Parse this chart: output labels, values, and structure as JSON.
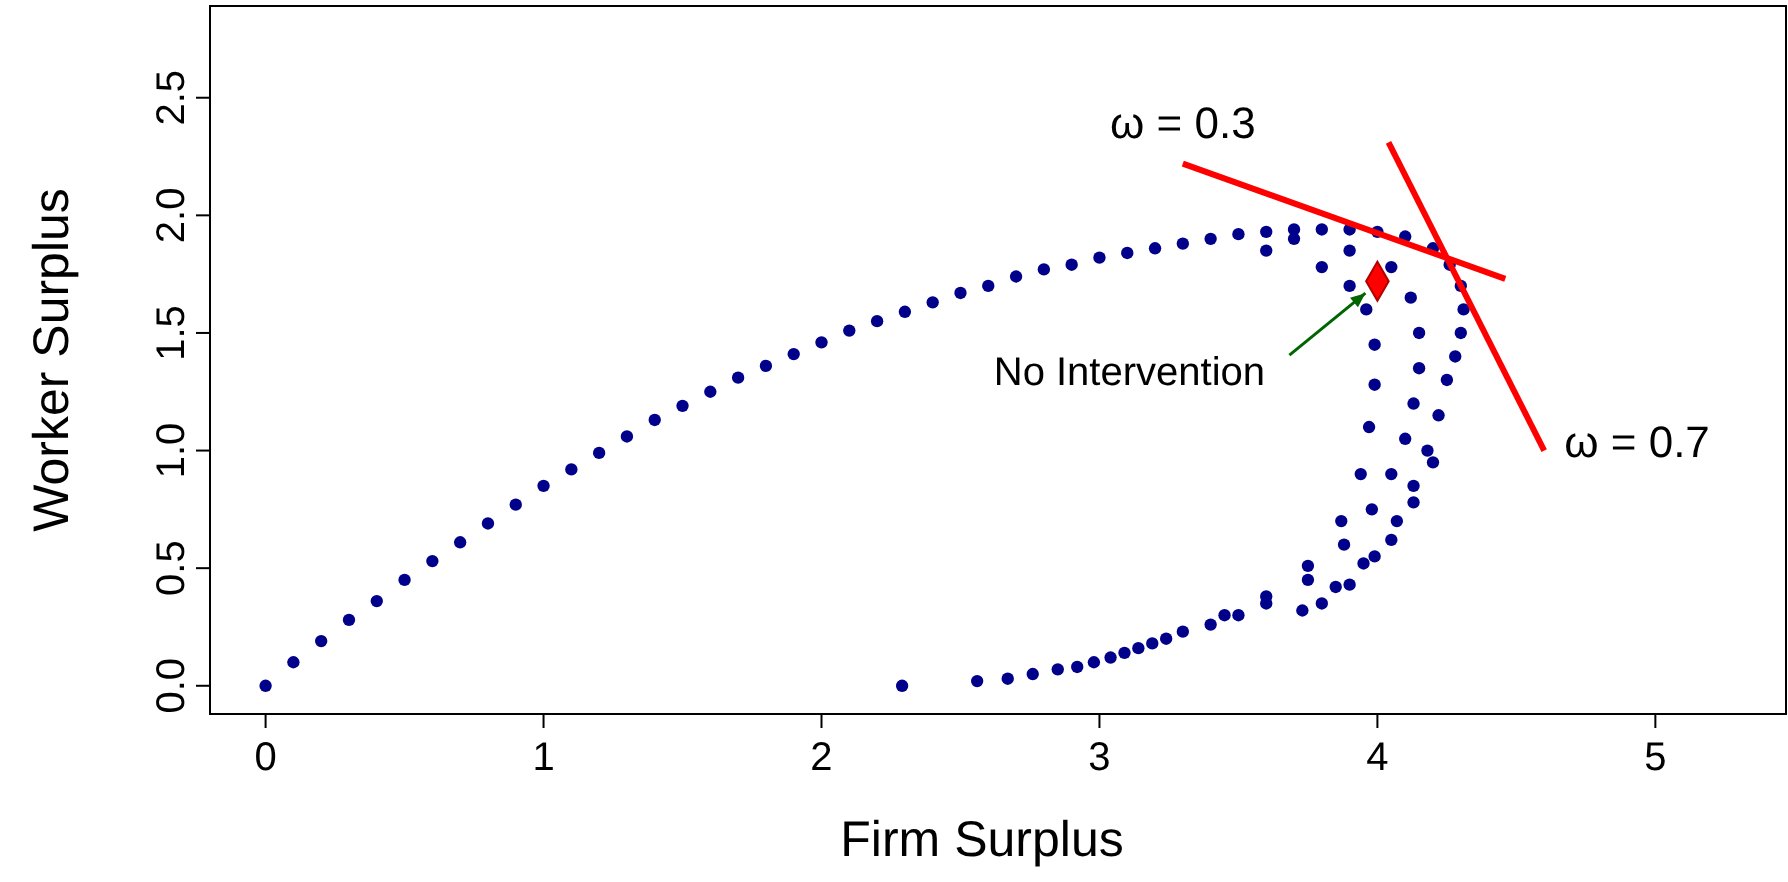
{
  "chart_data": {
    "type": "scatter",
    "xlabel": "Firm Surplus",
    "ylabel": "Worker Surplus",
    "xlim": [
      -0.2,
      5.47
    ],
    "ylim": [
      -0.12,
      2.89
    ],
    "xticks": [
      0,
      1,
      2,
      3,
      4,
      5
    ],
    "yticks": [
      {
        "value": 0,
        "label": "0.0"
      },
      {
        "value": 0.5,
        "label": "0.5"
      },
      {
        "value": 1,
        "label": "1.0"
      },
      {
        "value": 1.5,
        "label": "1.5"
      },
      {
        "value": 2,
        "label": "2.0"
      },
      {
        "value": 2.5,
        "label": "2.5"
      }
    ],
    "grid": false,
    "series": [
      {
        "color": "#00008b",
        "marker": "circle",
        "x": [
          0,
          0.1,
          0.2,
          0.3,
          0.4,
          0.5,
          0.6,
          0.7,
          0.8,
          0.9,
          1.0,
          1.1,
          1.2,
          1.3,
          1.4,
          1.5,
          1.6,
          1.7,
          1.8,
          1.9,
          2.0,
          2.1,
          2.2,
          2.3,
          2.4,
          2.5,
          2.6,
          2.7,
          2.8,
          2.9,
          3.0,
          3.1,
          3.2,
          3.3,
          3.4,
          3.5,
          3.6,
          3.7,
          3.8,
          3.9,
          4.0,
          4.1,
          4.2,
          4.26,
          4.3,
          4.31,
          4.3,
          4.28,
          4.25,
          4.22,
          4.18,
          4.13,
          4.07,
          3.99,
          3.9,
          3.8,
          2.29,
          2.56,
          2.67,
          2.76,
          2.85,
          2.92,
          2.98,
          3.04,
          3.09,
          3.14,
          3.19,
          3.24,
          3.3,
          3.4,
          3.5,
          3.6,
          3.73,
          3.85,
          3.95,
          4.05,
          4.13,
          4.2,
          3.6,
          3.8,
          3.9,
          3.96,
          3.99,
          3.99,
          3.97,
          3.94,
          3.87,
          3.75,
          3.6,
          3.45,
          3.7,
          3.9,
          4.05,
          4.12,
          4.15,
          4.15,
          4.13,
          4.1,
          4.05,
          3.98,
          3.88,
          3.75
        ],
        "values": [
          0,
          0.1,
          0.19,
          0.28,
          0.36,
          0.45,
          0.53,
          0.61,
          0.69,
          0.77,
          0.85,
          0.92,
          0.99,
          1.06,
          1.13,
          1.19,
          1.25,
          1.31,
          1.36,
          1.41,
          1.46,
          1.51,
          1.55,
          1.59,
          1.63,
          1.67,
          1.7,
          1.74,
          1.77,
          1.79,
          1.82,
          1.84,
          1.86,
          1.88,
          1.9,
          1.92,
          1.93,
          1.94,
          1.94,
          1.94,
          1.93,
          1.91,
          1.86,
          1.79,
          1.7,
          1.6,
          1.5,
          1.4,
          1.3,
          1.15,
          1.0,
          0.85,
          0.7,
          0.55,
          0.43,
          0.35,
          0.0,
          0.02,
          0.03,
          0.05,
          0.07,
          0.08,
          0.1,
          0.12,
          0.14,
          0.16,
          0.18,
          0.2,
          0.23,
          0.26,
          0.3,
          0.35,
          0.32,
          0.42,
          0.52,
          0.62,
          0.78,
          0.95,
          1.85,
          1.78,
          1.7,
          1.6,
          1.45,
          1.28,
          1.1,
          0.9,
          0.7,
          0.51,
          0.38,
          0.3,
          1.9,
          1.85,
          1.78,
          1.65,
          1.5,
          1.35,
          1.2,
          1.05,
          0.9,
          0.75,
          0.6,
          0.45
        ]
      },
      {
        "type": "line",
        "name": "ω = 0.3",
        "color": "#ff0000",
        "line_style": "solid",
        "x": [
          3.3,
          4.46
        ],
        "values": [
          2.22,
          1.73
        ]
      },
      {
        "type": "line",
        "name": "ω = 0.7",
        "color": "#ff0000",
        "line_style": "solid",
        "x": [
          4.04,
          4.6
        ],
        "values": [
          2.31,
          1.0
        ]
      },
      {
        "color": "#ff0000",
        "marker": "diamond",
        "x": [
          4.0
        ],
        "values": [
          1.72
        ]
      }
    ],
    "annotations": [
      {
        "text": "No Intervention",
        "x": 4.0,
        "y": 1.72
      }
    ]
  }
}
